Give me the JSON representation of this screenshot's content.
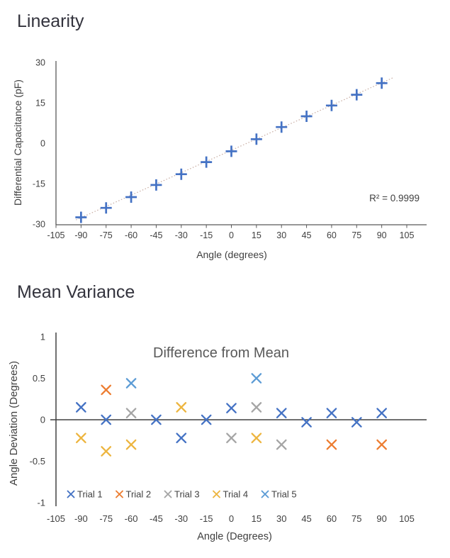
{
  "headings": {
    "linearity": "Linearity",
    "mean_variance": "Mean Variance"
  },
  "chart_data": [
    {
      "type": "scatter",
      "title": "",
      "xlabel": "Angle (degrees)",
      "ylabel": "Differential Capacitance (pF)",
      "annotation": "R² = 0.9999",
      "marker": "plus",
      "marker_color": "#4472C4",
      "axis_color": "#595959",
      "xlim": [
        -105,
        105
      ],
      "ylim": [
        -30,
        30
      ],
      "x_ticks": [
        -105,
        -90,
        -75,
        -60,
        -45,
        -30,
        -15,
        0,
        15,
        30,
        45,
        60,
        75,
        90,
        105
      ],
      "y_ticks": [
        30,
        15,
        0,
        -15,
        -30
      ],
      "x": [
        -90,
        -75,
        -60,
        -45,
        -30,
        -15,
        0,
        15,
        30,
        45,
        60,
        75,
        90
      ],
      "y": [
        -27.5,
        -24,
        -20,
        -15.5,
        -11.5,
        -7,
        -3,
        1.5,
        6,
        10,
        14,
        18,
        22.3
      ],
      "trendline": {
        "style": "dotted",
        "color": "#C7ACA1",
        "slope": 0.278,
        "intercept": -2.6,
        "x_start": -93,
        "x_end": 97
      },
      "grid": false,
      "legend_position": "none"
    },
    {
      "type": "scatter",
      "title": "Difference from Mean",
      "xlabel": "Angle (Degrees)",
      "ylabel": "Angle Deviation (Degrees)",
      "marker": "x",
      "axis_color": "#404040",
      "xlim": [
        -105,
        105
      ],
      "ylim": [
        -1,
        1
      ],
      "x_ticks": [
        -105,
        -90,
        -75,
        -60,
        -45,
        -30,
        -15,
        0,
        15,
        30,
        45,
        60,
        75,
        90,
        105
      ],
      "y_ticks": [
        "1",
        "0.5",
        "0",
        "-0.5",
        "-1"
      ],
      "y_tick_values": [
        1,
        0.5,
        0,
        -0.5,
        -1
      ],
      "grid": false,
      "legend_position": "bottom",
      "series": [
        {
          "name": "Trial 1",
          "color": "#4472C4",
          "points": [
            [
              -90,
              0.15
            ],
            [
              -75,
              0
            ],
            [
              -45,
              0
            ],
            [
              -30,
              -0.22
            ],
            [
              -15,
              0
            ],
            [
              0,
              0.14
            ],
            [
              30,
              0.08
            ],
            [
              45,
              -0.03
            ],
            [
              60,
              0.08
            ],
            [
              75,
              -0.03
            ],
            [
              90,
              0.08
            ]
          ]
        },
        {
          "name": "Trial 2",
          "color": "#ED7D31",
          "points": [
            [
              -75,
              0.36
            ],
            [
              60,
              -0.3
            ],
            [
              90,
              -0.3
            ]
          ]
        },
        {
          "name": "Trial 3",
          "color": "#A5A5A5",
          "points": [
            [
              -60,
              0.08
            ],
            [
              0,
              -0.22
            ],
            [
              15,
              0.15
            ],
            [
              30,
              -0.3
            ]
          ]
        },
        {
          "name": "Trial 4",
          "color": "#EDB53F",
          "points": [
            [
              -90,
              -0.22
            ],
            [
              -75,
              -0.38
            ],
            [
              -60,
              -0.3
            ],
            [
              -30,
              0.15
            ],
            [
              15,
              -0.22
            ]
          ]
        },
        {
          "name": "Trial 5",
          "color": "#5B9BD5",
          "points": [
            [
              -60,
              0.44
            ],
            [
              15,
              0.5
            ]
          ]
        }
      ]
    }
  ]
}
